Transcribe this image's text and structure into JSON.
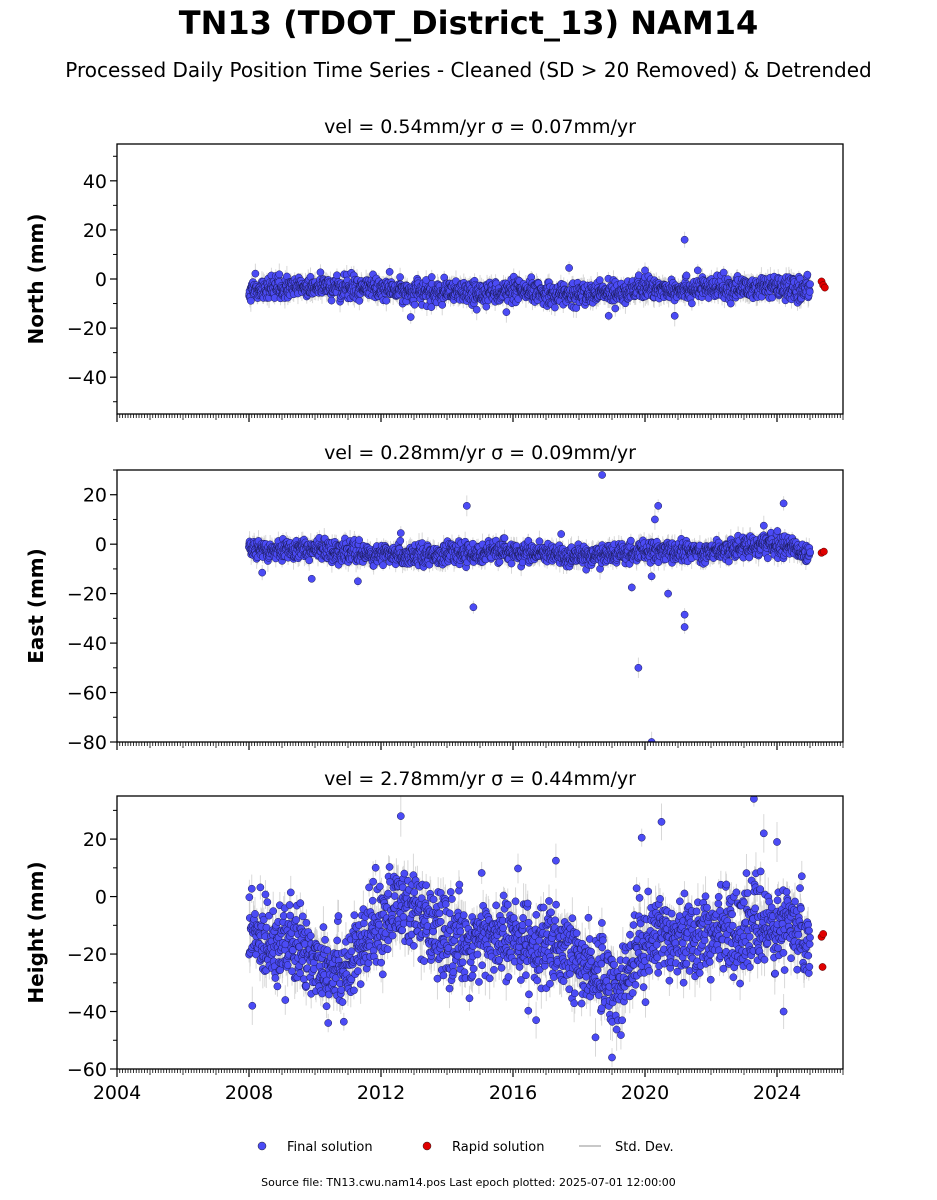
{
  "header": {
    "title": "TN13 (TDOT_District_13) NAM14",
    "subtitle": "Processed Daily Position Time Series - Cleaned (SD > 20 Removed) & Detrended"
  },
  "footer": {
    "source": "Source file: TN13.cwu.nam14.pos  Last epoch plotted: 2025-07-01 12:00:00"
  },
  "colors": {
    "final": "#4b4bf5",
    "rapid": "#e00000",
    "stddev": "#c8c8c8"
  },
  "chart_data": [
    {
      "type": "scatter",
      "title": "vel = 0.54mm/yr   σ = 0.07mm/yr",
      "ylabel": "North (mm)",
      "xlim": [
        2004,
        2026
      ],
      "ylim": [
        -55,
        55
      ],
      "yticks": [
        -40,
        -20,
        0,
        20,
        40
      ],
      "xticks": [
        2004,
        2008,
        2012,
        2016,
        2020,
        2024
      ],
      "show_xticklabels": false,
      "data_start": 2008.0,
      "data_end": 2025.0,
      "trend": [
        [
          2008,
          -4.5
        ],
        [
          2010,
          -3.0
        ],
        [
          2012,
          -4.2
        ],
        [
          2014,
          -6.0
        ],
        [
          2016,
          -5.0
        ],
        [
          2018,
          -6.5
        ],
        [
          2020,
          -4.0
        ],
        [
          2022,
          -4.0
        ],
        [
          2024,
          -3.5
        ],
        [
          2025,
          -4.5
        ]
      ],
      "scatter_sd": 2.2,
      "err_sd": 3,
      "outliers": [
        [
          2012.9,
          -15.5
        ],
        [
          2014.9,
          -12.5
        ],
        [
          2015.8,
          -13.5
        ],
        [
          2017.7,
          4.5
        ],
        [
          2018.9,
          -15.0
        ],
        [
          2019.1,
          -12.0
        ],
        [
          2020.0,
          3.5
        ],
        [
          2020.9,
          -15.0
        ],
        [
          2021.2,
          16.0
        ],
        [
          2021.6,
          3.5
        ]
      ],
      "rapid": [
        [
          2025.35,
          -1.0
        ],
        [
          2025.4,
          -2.5
        ],
        [
          2025.45,
          -3.5
        ]
      ]
    },
    {
      "type": "scatter",
      "title": "vel = 0.28mm/yr   σ = 0.09mm/yr",
      "ylabel": "East (mm)",
      "xlim": [
        2004,
        2026
      ],
      "ylim": [
        -80,
        30
      ],
      "yticks": [
        -80,
        -60,
        -40,
        -20,
        0,
        20
      ],
      "xticks": [
        2004,
        2008,
        2012,
        2016,
        2020,
        2024
      ],
      "show_xticklabels": false,
      "data_start": 2008.0,
      "data_end": 2025.0,
      "trend": [
        [
          2008,
          -2.0
        ],
        [
          2010,
          -2.0
        ],
        [
          2012,
          -4.5
        ],
        [
          2014,
          -4.0
        ],
        [
          2016,
          -3.0
        ],
        [
          2018,
          -5.0
        ],
        [
          2020,
          -3.0
        ],
        [
          2022,
          -3.0
        ],
        [
          2023.5,
          0.0
        ],
        [
          2024.5,
          -1.0
        ],
        [
          2025,
          -4.0
        ]
      ],
      "scatter_sd": 2.0,
      "err_sd": 3,
      "outliers": [
        [
          2008.4,
          -11.5
        ],
        [
          2009.9,
          -14.0
        ],
        [
          2011.3,
          -15.0
        ],
        [
          2012.6,
          4.5
        ],
        [
          2014.6,
          15.5
        ],
        [
          2014.8,
          -25.5
        ],
        [
          2018.7,
          28.0
        ],
        [
          2019.6,
          -17.5
        ],
        [
          2019.8,
          -50.0
        ],
        [
          2020.2,
          -13.0
        ],
        [
          2020.3,
          10.0
        ],
        [
          2020.4,
          15.5
        ],
        [
          2020.7,
          -20.0
        ],
        [
          2021.2,
          -28.5
        ],
        [
          2021.2,
          -33.5
        ],
        [
          2020.2,
          -80.0
        ],
        [
          2023.6,
          7.5
        ],
        [
          2024.2,
          16.5
        ]
      ],
      "rapid": [
        [
          2025.35,
          -3.5
        ],
        [
          2025.42,
          -3.0
        ]
      ]
    },
    {
      "type": "scatter",
      "title": "vel = 2.78mm/yr   σ = 0.44mm/yr",
      "ylabel": "Height (mm)",
      "xlim": [
        2004,
        2026
      ],
      "ylim": [
        -60,
        35
      ],
      "yticks": [
        -60,
        -40,
        -20,
        0,
        20
      ],
      "xticks": [
        2004,
        2008,
        2012,
        2016,
        2020,
        2024
      ],
      "show_xticklabels": true,
      "data_start": 2008.0,
      "data_end": 2025.0,
      "trend": [
        [
          2008,
          -14
        ],
        [
          2009,
          -15
        ],
        [
          2010,
          -22
        ],
        [
          2011,
          -25
        ],
        [
          2012,
          -8
        ],
        [
          2012.7,
          -2
        ],
        [
          2013.5,
          -12
        ],
        [
          2014.5,
          -16
        ],
        [
          2015.5,
          -14
        ],
        [
          2016.5,
          -16
        ],
        [
          2017.5,
          -20
        ],
        [
          2018.5,
          -25
        ],
        [
          2019.2,
          -33
        ],
        [
          2019.8,
          -18
        ],
        [
          2020.5,
          -12
        ],
        [
          2021.5,
          -14
        ],
        [
          2022.5,
          -12
        ],
        [
          2023.5,
          -10
        ],
        [
          2024.5,
          -12
        ],
        [
          2025,
          -14
        ]
      ],
      "scatter_sd": 7.0,
      "err_sd": 5,
      "outliers": [
        [
          2008.1,
          -38.0
        ],
        [
          2012.6,
          28.0
        ],
        [
          2016.7,
          -43.0
        ],
        [
          2017.3,
          12.5
        ],
        [
          2018.5,
          -49.0
        ],
        [
          2019.0,
          -56.0
        ],
        [
          2019.9,
          20.5
        ],
        [
          2020.5,
          26.0
        ],
        [
          2023.3,
          34.0
        ],
        [
          2023.6,
          22.0
        ],
        [
          2024.2,
          -40.0
        ],
        [
          2024.0,
          19.0
        ],
        [
          2009.1,
          -36.0
        ],
        [
          2010.4,
          -44.0
        ]
      ],
      "rapid": [
        [
          2025.35,
          -14.0
        ],
        [
          2025.4,
          -13.0
        ],
        [
          2025.38,
          -24.5
        ]
      ]
    }
  ],
  "legend": {
    "placement": "bottom-center",
    "items": [
      {
        "label": "Final solution",
        "kind": "final"
      },
      {
        "label": "Rapid solution",
        "kind": "rapid"
      },
      {
        "label": "Std. Dev.",
        "kind": "stddev"
      }
    ]
  }
}
